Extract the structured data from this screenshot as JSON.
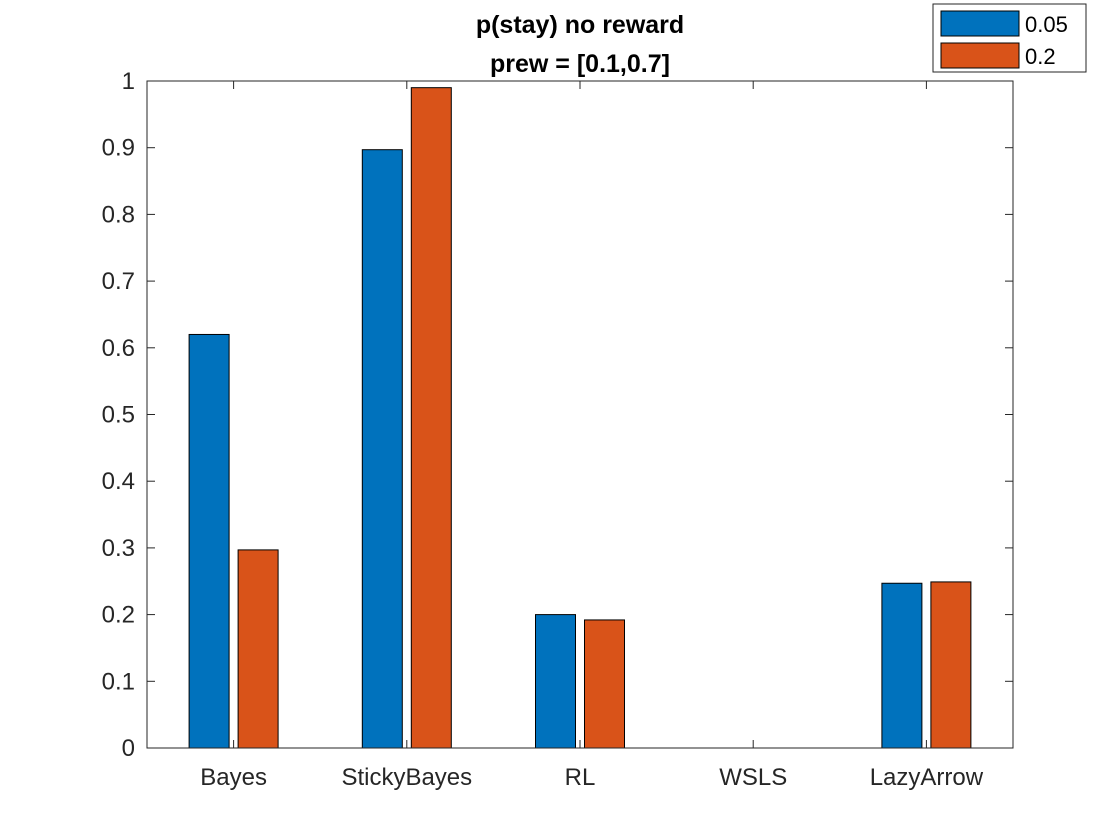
{
  "chart_data": {
    "type": "bar",
    "title": "p(stay) no reward",
    "subtitle": "prew = [0.1,0.7]",
    "xlabel": "",
    "ylabel": "",
    "categories": [
      "Bayes",
      "StickyBayes",
      "RL",
      "WSLS",
      "LazyArrow"
    ],
    "series": [
      {
        "name": "0.05",
        "color": "#0072BD",
        "values": [
          0.62,
          0.897,
          0.2,
          0.0,
          0.247
        ]
      },
      {
        "name": "0.2",
        "color": "#D95319",
        "values": [
          0.297,
          0.99,
          0.192,
          0.0,
          0.249
        ]
      }
    ],
    "ylim": [
      0,
      1
    ],
    "yticks": [
      0,
      0.1,
      0.2,
      0.3,
      0.4,
      0.5,
      0.6,
      0.7,
      0.8,
      0.9,
      1
    ],
    "ytick_labels": [
      "0",
      "0.1",
      "0.2",
      "0.3",
      "0.4",
      "0.5",
      "0.6",
      "0.7",
      "0.8",
      "0.9",
      "1"
    ],
    "grid": false,
    "legend_position": "top-right"
  }
}
